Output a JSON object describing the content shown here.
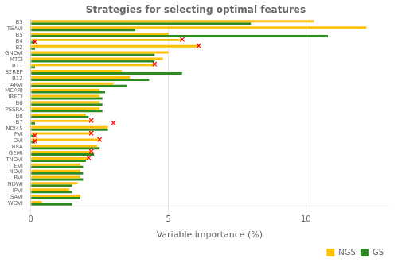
{
  "chart_data": {
    "type": "bar",
    "orientation": "horizontal",
    "title": "Strategies for selecting optimal features",
    "xlabel": "Variable importance (%)",
    "categories": [
      "B3",
      "TSAVI",
      "B5",
      "B4",
      "B2",
      "GNDVI",
      "MTCI",
      "B11",
      "S2REP",
      "B12",
      "ARVI",
      "MCARI",
      "IRECI",
      "B6",
      "PSSRA",
      "B8",
      "B7",
      "NDI45",
      "PVI",
      "DVI",
      "B8A",
      "GEMI",
      "TNDVI",
      "EVI",
      "NDVI",
      "RVI",
      "NDWI",
      "IPVI",
      "SAVI",
      "WDVI"
    ],
    "series": [
      {
        "name": "NGS",
        "color": "#FFC107",
        "values": [
          10.3,
          12.2,
          5.0,
          5.5,
          6.1,
          5.0,
          4.8,
          4.5,
          3.3,
          3.6,
          3.0,
          2.5,
          2.5,
          2.5,
          2.5,
          2.0,
          2.2,
          2.8,
          2.2,
          2.5,
          2.4,
          2.2,
          2.1,
          1.8,
          1.8,
          1.8,
          1.7,
          1.4,
          1.8,
          0.4
        ]
      },
      {
        "name": "GS",
        "color": "#2E8B22",
        "values": [
          8.0,
          3.8,
          10.8,
          0.15,
          0.15,
          4.5,
          4.5,
          0.15,
          5.5,
          4.3,
          3.5,
          2.7,
          2.6,
          2.6,
          2.6,
          2.1,
          0.15,
          2.8,
          0.15,
          0.15,
          2.5,
          2.3,
          2.0,
          1.9,
          1.9,
          1.9,
          1.5,
          1.5,
          1.8,
          1.5
        ]
      }
    ],
    "xlim": [
      0,
      13
    ],
    "xticks": [
      0,
      5,
      10
    ],
    "grid": "x",
    "legend": "lower right",
    "annotations": [
      {
        "text": "×",
        "series": "NGS",
        "category": "B4",
        "x": 5.5,
        "color": "red"
      },
      {
        "text": "×",
        "series": "NGS",
        "category": "B2",
        "x": 6.1,
        "color": "red"
      },
      {
        "text": "×",
        "series": "NGS",
        "category": "B11",
        "x": 4.5,
        "color": "red"
      },
      {
        "text": "×",
        "series": "NGS",
        "category": "B7",
        "x": 2.2,
        "color": "red"
      },
      {
        "text": "×",
        "series": "NGS",
        "category": "PVI",
        "x": 2.2,
        "color": "red"
      },
      {
        "text": "×",
        "series": "NGS",
        "category": "DVI",
        "x": 2.5,
        "color": "red"
      },
      {
        "text": "×",
        "series": "NGS",
        "category": "GEMI",
        "x": 2.2,
        "color": "red"
      },
      {
        "text": "×",
        "series": "NGS",
        "category": "TNDVI",
        "x": 2.1,
        "color": "red"
      },
      {
        "text": "×",
        "series": "GS",
        "category": "B4",
        "x": 0.15,
        "color": "red"
      },
      {
        "text": "×",
        "series": "GS",
        "category": "B7",
        "x": 3.0,
        "color": "red"
      },
      {
        "text": "×",
        "series": "GS",
        "category": "PVI",
        "x": 0.15,
        "color": "red"
      },
      {
        "text": "×",
        "series": "GS",
        "category": "DVI",
        "x": 0.15,
        "color": "red"
      }
    ]
  }
}
